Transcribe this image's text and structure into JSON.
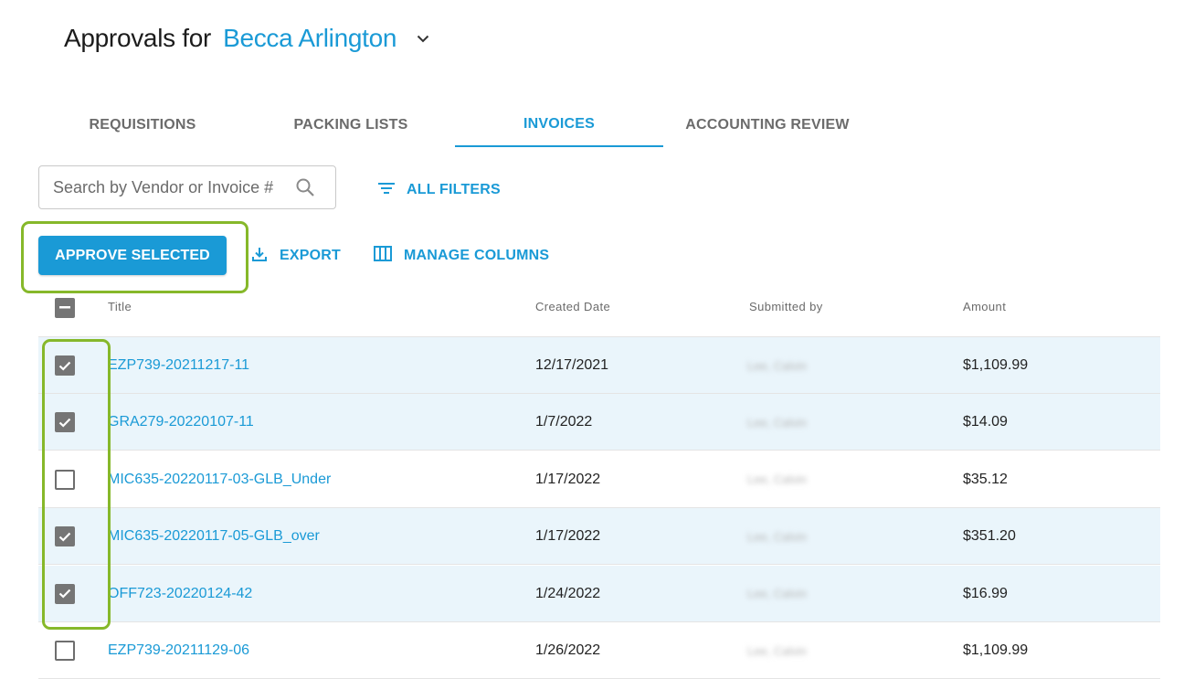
{
  "header": {
    "prefix": "Approvals for",
    "user": "Becca Arlington"
  },
  "tabs": [
    {
      "label": "REQUISITIONS"
    },
    {
      "label": "PACKING LISTS"
    },
    {
      "label": "INVOICES"
    },
    {
      "label": "ACCOUNTING REVIEW"
    }
  ],
  "active_tab": "INVOICES",
  "search": {
    "placeholder": "Search by Vendor or Invoice #",
    "value": ""
  },
  "filters": {
    "label": "ALL FILTERS"
  },
  "actions": {
    "approve_label": "APPROVE SELECTED",
    "export_label": "EXPORT",
    "columns_label": "MANAGE COLUMNS"
  },
  "table": {
    "columns": [
      "Title",
      "Created Date",
      "Submitted by",
      "Amount"
    ],
    "rows": [
      {
        "checked": true,
        "title": "EZP739-20211217-11",
        "date": "12/17/2021",
        "submitter": "Lee, Calvin",
        "amount": "$1,109.99"
      },
      {
        "checked": true,
        "title": "GRA279-20220107-11",
        "date": "1/7/2022",
        "submitter": "Lee, Calvin",
        "amount": "$14.09"
      },
      {
        "checked": false,
        "title": "MIC635-20220117-03-GLB_Under",
        "date": "1/17/2022",
        "submitter": "Lee, Calvin",
        "amount": "$35.12"
      },
      {
        "checked": true,
        "title": "MIC635-20220117-05-GLB_over",
        "date": "1/17/2022",
        "submitter": "Lee, Calvin",
        "amount": "$351.20"
      },
      {
        "checked": true,
        "title": "OFF723-20220124-42",
        "date": "1/24/2022",
        "submitter": "Lee, Calvin",
        "amount": "$16.99"
      },
      {
        "checked": false,
        "title": "EZP739-20211129-06",
        "date": "1/26/2022",
        "submitter": "Lee, Calvin",
        "amount": "$1,109.99"
      }
    ]
  },
  "colors": {
    "accent": "#1a9ad6",
    "highlight": "#86b82a",
    "selected_row": "#eaf5fb"
  }
}
